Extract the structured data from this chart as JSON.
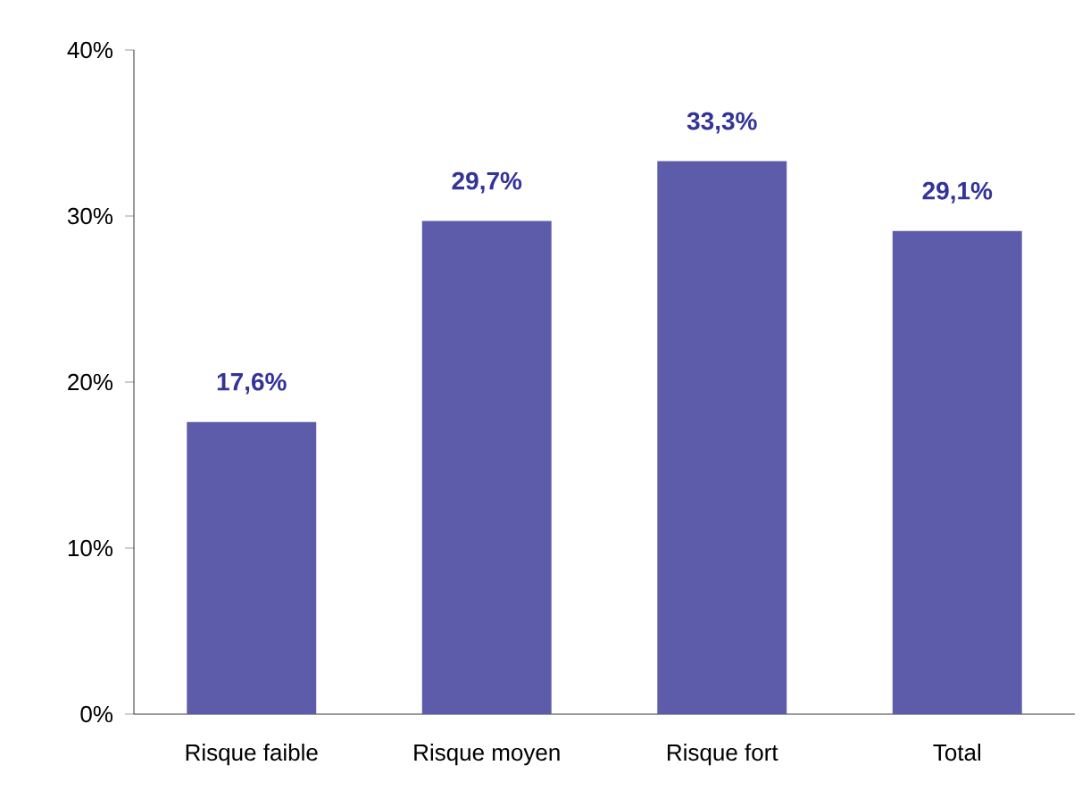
{
  "chart_data": {
    "type": "bar",
    "categories": [
      "Risque faible",
      "Risque moyen",
      "Risque fort",
      "Total"
    ],
    "values": [
      17.6,
      29.7,
      33.3,
      29.1
    ],
    "value_labels": [
      "17,6%",
      "29,7%",
      "33,3%",
      "29,1%"
    ],
    "color": "#5c5caa",
    "ylim": [
      0,
      40
    ],
    "yticks": [
      {
        "value": 0,
        "label": "0%"
      },
      {
        "value": 10,
        "label": "10%"
      },
      {
        "value": 20,
        "label": "20%"
      },
      {
        "value": 30,
        "label": "30%"
      },
      {
        "value": 40,
        "label": "40%"
      }
    ]
  }
}
